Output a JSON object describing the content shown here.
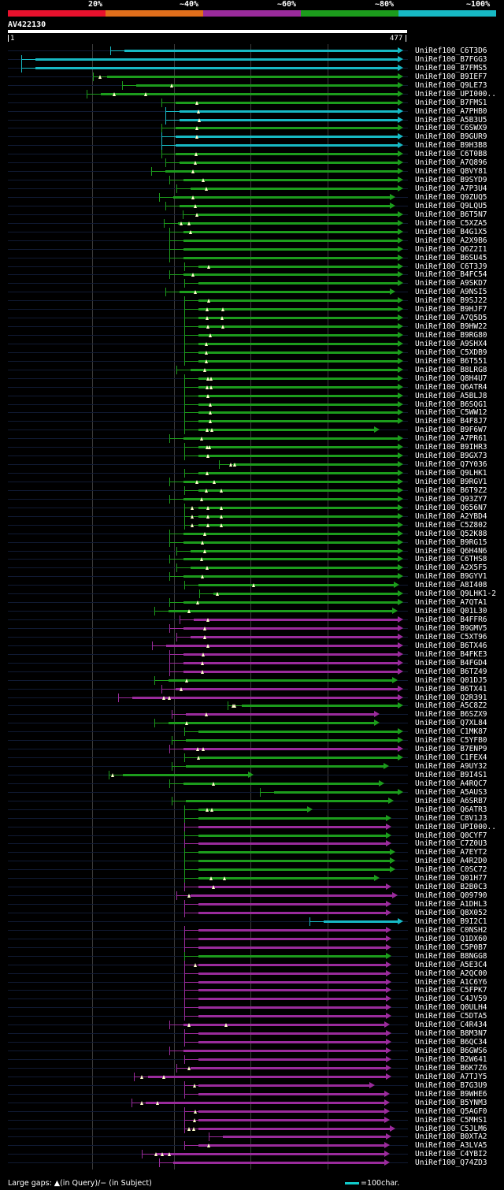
{
  "legend": {
    "labels": [
      "20%",
      "~40%",
      "~60%",
      "~80%",
      "~100%"
    ],
    "colors": [
      "#e8112d",
      "#e06e1b",
      "#9a2b9c",
      "#1c9c1c",
      "#17b9c4"
    ]
  },
  "query": {
    "name": "AV422130",
    "start": "1",
    "end": "477",
    "length": 477
  },
  "footer": {
    "gaps_legend": "Large gaps: ▲(in Query)/− (in Subject)",
    "scale_legend": "=100char."
  },
  "colors": {
    "green": "#1c9c1c",
    "magenta": "#9a2b9c",
    "cyan": "#17b9c4",
    "gap": "#ffffcc"
  },
  "hits": [
    {
      "name": "UniRef100_C6T3D6",
      "s": 140,
      "e": 512,
      "c": "cyan",
      "g": []
    },
    {
      "name": "UniRef100_B7FGG3",
      "s": 27,
      "e": 512,
      "c": "cyan",
      "g": []
    },
    {
      "name": "UniRef100_B7FMS5",
      "s": 27,
      "e": 512,
      "c": "cyan",
      "g": []
    },
    {
      "name": "UniRef100_B9IEF7",
      "s": 118,
      "e": 512,
      "c": "green",
      "g": [
        127
      ]
    },
    {
      "name": "UniRef100_Q9LE73",
      "s": 155,
      "e": 512,
      "c": "green",
      "g": [
        218
      ]
    },
    {
      "name": "UniRef100_UPI000..",
      "s": 110,
      "e": 512,
      "c": "green",
      "g": [
        145,
        185
      ]
    },
    {
      "name": "UniRef100_B7FMS1",
      "s": 205,
      "e": 512,
      "c": "green",
      "g": [
        250
      ]
    },
    {
      "name": "UniRef100_A7PHB0",
      "s": 210,
      "e": 512,
      "c": "cyan",
      "g": [
        252
      ]
    },
    {
      "name": "UniRef100_A5B3U5",
      "s": 210,
      "e": 512,
      "c": "cyan",
      "g": [
        253
      ]
    },
    {
      "name": "UniRef100_C6SWX9",
      "s": 205,
      "e": 512,
      "c": "green",
      "g": [
        250
      ]
    },
    {
      "name": "UniRef100_B9GUR9",
      "s": 205,
      "e": 512,
      "c": "cyan",
      "g": [
        250
      ]
    },
    {
      "name": "UniRef100_B9H3B8",
      "s": 205,
      "e": 512,
      "c": "cyan",
      "g": []
    },
    {
      "name": "UniRef100_C6T0B8",
      "s": 205,
      "e": 512,
      "c": "green",
      "g": [
        249
      ]
    },
    {
      "name": "UniRef100_A7Q896",
      "s": 210,
      "e": 512,
      "c": "green",
      "g": [
        248
      ]
    },
    {
      "name": "UniRef100_Q8VY81",
      "s": 192,
      "e": 512,
      "c": "green",
      "g": [
        245
      ]
    },
    {
      "name": "UniRef100_B9SYD9",
      "s": 215,
      "e": 512,
      "c": "green",
      "g": [
        258
      ]
    },
    {
      "name": "UniRef100_A7P3U4",
      "s": 224,
      "e": 512,
      "c": "green",
      "g": [
        262
      ]
    },
    {
      "name": "UniRef100_Q9ZUQ5",
      "s": 202,
      "e": 502,
      "c": "green",
      "g": [
        245
      ]
    },
    {
      "name": "UniRef100_Q9LQU5",
      "s": 210,
      "e": 502,
      "c": "green",
      "g": [
        248
      ]
    },
    {
      "name": "UniRef100_B6T5N7",
      "s": 232,
      "e": 512,
      "c": "green",
      "g": [
        250
      ]
    },
    {
      "name": "UniRef100_C5XZA5",
      "s": 208,
      "e": 512,
      "c": "green",
      "g": [
        230,
        240
      ]
    },
    {
      "name": "UniRef100_B4G1X5",
      "s": 215,
      "e": 512,
      "c": "green",
      "g": [
        242
      ]
    },
    {
      "name": "UniRef100_A2X9B6",
      "s": 215,
      "e": 512,
      "c": "green",
      "g": []
    },
    {
      "name": "UniRef100_Q6Z2I1",
      "s": 215,
      "e": 512,
      "c": "green",
      "g": []
    },
    {
      "name": "UniRef100_B6SU45",
      "s": 215,
      "e": 512,
      "c": "green",
      "g": []
    },
    {
      "name": "UniRef100_C6T3J9",
      "s": 234,
      "e": 512,
      "c": "green",
      "g": [
        265
      ]
    },
    {
      "name": "UniRef100_B4FC54",
      "s": 215,
      "e": 512,
      "c": "green",
      "g": [
        245
      ]
    },
    {
      "name": "UniRef100_A9SKD7",
      "s": 234,
      "e": 512,
      "c": "green",
      "g": []
    },
    {
      "name": "UniRef100_A9NSI5",
      "s": 210,
      "e": 502,
      "c": "green",
      "g": [
        248
      ]
    },
    {
      "name": "UniRef100_B9SJ22",
      "s": 234,
      "e": 512,
      "c": "green",
      "g": [
        265
      ]
    },
    {
      "name": "UniRef100_B9HJF7",
      "s": 234,
      "e": 512,
      "c": "green",
      "g": [
        263,
        283
      ]
    },
    {
      "name": "UniRef100_A7Q5D5",
      "s": 234,
      "e": 512,
      "c": "green",
      "g": [
        263,
        282
      ]
    },
    {
      "name": "UniRef100_B9HW22",
      "s": 234,
      "e": 512,
      "c": "green",
      "g": [
        264,
        283
      ]
    },
    {
      "name": "UniRef100_B9RG80",
      "s": 234,
      "e": 512,
      "c": "green",
      "g": [
        267
      ]
    },
    {
      "name": "UniRef100_A9SHX4",
      "s": 234,
      "e": 512,
      "c": "green",
      "g": [
        262
      ]
    },
    {
      "name": "UniRef100_C5XDB9",
      "s": 234,
      "e": 512,
      "c": "green",
      "g": [
        262
      ]
    },
    {
      "name": "UniRef100_B6T551",
      "s": 234,
      "e": 512,
      "c": "green",
      "g": [
        262
      ]
    },
    {
      "name": "UniRef100_B8LRG8",
      "s": 224,
      "e": 512,
      "c": "green",
      "g": [
        260
      ]
    },
    {
      "name": "UniRef100_Q8H4U7",
      "s": 234,
      "e": 512,
      "c": "green",
      "g": [
        264,
        268
      ]
    },
    {
      "name": "UniRef100_Q6ATR4",
      "s": 234,
      "e": 512,
      "c": "green",
      "g": [
        263,
        268
      ]
    },
    {
      "name": "UniRef100_A5BLJ8",
      "s": 234,
      "e": 512,
      "c": "green",
      "g": [
        264
      ]
    },
    {
      "name": "UniRef100_B6SQG1",
      "s": 234,
      "e": 512,
      "c": "green",
      "g": [
        267
      ]
    },
    {
      "name": "UniRef100_C5WW12",
      "s": 234,
      "e": 512,
      "c": "green",
      "g": [
        267
      ]
    },
    {
      "name": "UniRef100_B4F8J7",
      "s": 234,
      "e": 512,
      "c": "green",
      "g": [
        267
      ]
    },
    {
      "name": "UniRef100_B9F6W7",
      "s": 234,
      "e": 482,
      "c": "green",
      "g": [
        263,
        269
      ]
    },
    {
      "name": "UniRef100_A7PR61",
      "s": 215,
      "e": 512,
      "c": "green",
      "g": [
        256
      ]
    },
    {
      "name": "UniRef100_B9IHR3",
      "s": 234,
      "e": 512,
      "c": "green",
      "g": [
        263,
        266
      ]
    },
    {
      "name": "UniRef100_B9GX73",
      "s": 234,
      "e": 512,
      "c": "green",
      "g": [
        264
      ]
    },
    {
      "name": "UniRef100_Q7Y036",
      "s": 278,
      "e": 512,
      "c": "green",
      "g": [
        293,
        298
      ]
    },
    {
      "name": "UniRef100_Q9LHK1",
      "s": 234,
      "e": 512,
      "c": "green",
      "g": [
        263
      ]
    },
    {
      "name": "UniRef100_B9RGV1",
      "s": 215,
      "e": 512,
      "c": "green",
      "g": [
        250,
        272
      ]
    },
    {
      "name": "UniRef100_B6T9Z2",
      "s": 234,
      "e": 512,
      "c": "green",
      "g": [
        262,
        281
      ]
    },
    {
      "name": "UniRef100_Q93ZY7",
      "s": 215,
      "e": 512,
      "c": "green",
      "g": [
        256
      ]
    },
    {
      "name": "UniRef100_Q656N7",
      "s": 234,
      "e": 512,
      "c": "green",
      "g": [
        244,
        264,
        281
      ]
    },
    {
      "name": "UniRef100_A2YBD4",
      "s": 234,
      "e": 512,
      "c": "green",
      "g": [
        244,
        264,
        281
      ]
    },
    {
      "name": "UniRef100_C5Z802",
      "s": 234,
      "e": 512,
      "c": "green",
      "g": [
        244,
        264,
        281
      ]
    },
    {
      "name": "UniRef100_Q52K88",
      "s": 215,
      "e": 512,
      "c": "green",
      "g": [
        260
      ]
    },
    {
      "name": "UniRef100_B9RG15",
      "s": 215,
      "e": 512,
      "c": "green",
      "g": [
        257
      ]
    },
    {
      "name": "UniRef100_Q6H4N6",
      "s": 224,
      "e": 512,
      "c": "green",
      "g": [
        260
      ]
    },
    {
      "name": "UniRef100_C6THS8",
      "s": 215,
      "e": 512,
      "c": "green",
      "g": [
        256
      ]
    },
    {
      "name": "UniRef100_A2X5F5",
      "s": 224,
      "e": 512,
      "c": "green",
      "g": [
        263
      ]
    },
    {
      "name": "UniRef100_B9GYV1",
      "s": 215,
      "e": 512,
      "c": "green",
      "g": [
        257
      ]
    },
    {
      "name": "UniRef100_A8I408",
      "s": 234,
      "e": 507,
      "c": "green",
      "g": [
        322
      ]
    },
    {
      "name": "UniRef100_Q9LHK1-2",
      "s": 253,
      "e": 512,
      "c": "green",
      "g": [
        276
      ]
    },
    {
      "name": "UniRef100_A7QTA1",
      "s": 215,
      "e": 512,
      "c": "green",
      "g": [
        251
      ]
    },
    {
      "name": "UniRef100_Q01L30",
      "s": 196,
      "e": 505,
      "c": "green",
      "g": [
        240
      ]
    },
    {
      "name": "UniRef100_B4FFR6",
      "s": 228,
      "e": 512,
      "c": "magenta",
      "g": [
        264
      ]
    },
    {
      "name": "UniRef100_B9GMV5",
      "s": 215,
      "e": 512,
      "c": "magenta",
      "g": [
        260
      ]
    },
    {
      "name": "UniRef100_C5XT96",
      "s": 224,
      "e": 512,
      "c": "magenta",
      "g": [
        260
      ]
    },
    {
      "name": "UniRef100_B6TX46",
      "s": 193,
      "e": 512,
      "c": "magenta",
      "g": [
        264
      ]
    },
    {
      "name": "UniRef100_B4FKE3",
      "s": 215,
      "e": 512,
      "c": "magenta",
      "g": [
        258
      ]
    },
    {
      "name": "UniRef100_B4FGD4",
      "s": 215,
      "e": 512,
      "c": "magenta",
      "g": [
        257
      ]
    },
    {
      "name": "UniRef100_B6TZ49",
      "s": 215,
      "e": 512,
      "c": "magenta",
      "g": [
        257
      ]
    },
    {
      "name": "UniRef100_Q01DJ5",
      "s": 196,
      "e": 505,
      "c": "green",
      "g": [
        237
      ]
    },
    {
      "name": "UniRef100_B6TX41",
      "s": 205,
      "e": 512,
      "c": "magenta",
      "g": [
        230
      ]
    },
    {
      "name": "UniRef100_Q2R391",
      "s": 150,
      "e": 512,
      "c": "magenta",
      "g": [
        208,
        215
      ]
    },
    {
      "name": "UniRef100_A5C8Z2",
      "s": 289,
      "e": 512,
      "c": "green",
      "g": [
        296,
        298
      ]
    },
    {
      "name": "UniRef100_B6SZX9",
      "s": 218,
      "e": 482,
      "c": "magenta",
      "g": [
        262
      ]
    },
    {
      "name": "UniRef100_Q7XL84",
      "s": 196,
      "e": 482,
      "c": "green",
      "g": [
        237
      ]
    },
    {
      "name": "UniRef100_C1MK87",
      "s": 234,
      "e": 512,
      "c": "green",
      "g": []
    },
    {
      "name": "UniRef100_C5YFB0",
      "s": 218,
      "e": 512,
      "c": "green",
      "g": []
    },
    {
      "name": "UniRef100_B7ENP9",
      "s": 215,
      "e": 512,
      "c": "magenta",
      "g": [
        251,
        258
      ]
    },
    {
      "name": "UniRef100_C1FEX4",
      "s": 234,
      "e": 512,
      "c": "green",
      "g": [
        252
      ]
    },
    {
      "name": "UniRef100_A9UY32",
      "s": 218,
      "e": 494,
      "c": "green",
      "g": []
    },
    {
      "name": "UniRef100_B9I4S1",
      "s": 138,
      "e": 322,
      "c": "green",
      "g": [
        143
      ]
    },
    {
      "name": "UniRef100_A4RQC7",
      "s": 215,
      "e": 488,
      "c": "green",
      "g": [
        271
      ]
    },
    {
      "name": "UniRef100_A5AUS3",
      "s": 330,
      "e": 512,
      "c": "green",
      "g": []
    },
    {
      "name": "UniRef100_A6SRB7",
      "s": 218,
      "e": 500,
      "c": "green",
      "g": []
    },
    {
      "name": "UniRef100_Q6ATR3",
      "s": 234,
      "e": 397,
      "c": "green",
      "g": [
        263,
        269
      ]
    },
    {
      "name": "UniRef100_C8V1J3",
      "s": 234,
      "e": 497,
      "c": "green",
      "g": []
    },
    {
      "name": "UniRef100_UPI000..",
      "s": 234,
      "e": 497,
      "c": "magenta",
      "g": []
    },
    {
      "name": "UniRef100_Q0CYF7",
      "s": 234,
      "e": 497,
      "c": "green",
      "g": []
    },
    {
      "name": "UniRef100_C7Z0U3",
      "s": 234,
      "e": 497,
      "c": "magenta",
      "g": []
    },
    {
      "name": "UniRef100_A7EYT2",
      "s": 234,
      "e": 502,
      "c": "green",
      "g": []
    },
    {
      "name": "UniRef100_A4R2D0",
      "s": 234,
      "e": 502,
      "c": "green",
      "g": []
    },
    {
      "name": "UniRef100_C0SC72",
      "s": 234,
      "e": 502,
      "c": "green",
      "g": []
    },
    {
      "name": "UniRef100_Q01H77",
      "s": 234,
      "e": 482,
      "c": "green",
      "g": [
        268,
        285
      ]
    },
    {
      "name": "UniRef100_B2B0C3",
      "s": 234,
      "e": 497,
      "c": "magenta",
      "g": [
        271
      ]
    },
    {
      "name": "UniRef100_Q09790",
      "s": 224,
      "e": 505,
      "c": "magenta",
      "g": [
        240
      ]
    },
    {
      "name": "UniRef100_A1DHL3",
      "s": 234,
      "e": 497,
      "c": "magenta",
      "g": []
    },
    {
      "name": "UniRef100_Q8X052",
      "s": 234,
      "e": 497,
      "c": "magenta",
      "g": []
    },
    {
      "name": "UniRef100_B9I2C1",
      "s": 393,
      "e": 512,
      "c": "cyan",
      "g": []
    },
    {
      "name": "UniRef100_C0NSH2",
      "s": 234,
      "e": 497,
      "c": "magenta",
      "g": []
    },
    {
      "name": "UniRef100_Q1DX60",
      "s": 234,
      "e": 497,
      "c": "magenta",
      "g": []
    },
    {
      "name": "UniRef100_C5P0B7",
      "s": 234,
      "e": 497,
      "c": "magenta",
      "g": []
    },
    {
      "name": "UniRef100_B8NGG8",
      "s": 234,
      "e": 497,
      "c": "green",
      "g": []
    },
    {
      "name": "UniRef100_A5E3C4",
      "s": 234,
      "e": 497,
      "c": "magenta",
      "g": [
        248
      ]
    },
    {
      "name": "UniRef100_A2QC00",
      "s": 234,
      "e": 497,
      "c": "magenta",
      "g": []
    },
    {
      "name": "UniRef100_A1C6Y6",
      "s": 234,
      "e": 497,
      "c": "magenta",
      "g": []
    },
    {
      "name": "UniRef100_C5FPK7",
      "s": 234,
      "e": 497,
      "c": "magenta",
      "g": []
    },
    {
      "name": "UniRef100_C4JV59",
      "s": 234,
      "e": 497,
      "c": "magenta",
      "g": []
    },
    {
      "name": "UniRef100_Q0ULH4",
      "s": 234,
      "e": 497,
      "c": "magenta",
      "g": []
    },
    {
      "name": "UniRef100_C5DTA5",
      "s": 234,
      "e": 497,
      "c": "magenta",
      "g": []
    },
    {
      "name": "UniRef100_C4R434",
      "s": 215,
      "e": 495,
      "c": "magenta",
      "g": [
        240,
        287
      ]
    },
    {
      "name": "UniRef100_B8M3N7",
      "s": 234,
      "e": 497,
      "c": "magenta",
      "g": []
    },
    {
      "name": "UniRef100_B6QC34",
      "s": 234,
      "e": 497,
      "c": "magenta",
      "g": []
    },
    {
      "name": "UniRef100_B6GWS6",
      "s": 215,
      "e": 497,
      "c": "magenta",
      "g": []
    },
    {
      "name": "UniRef100_B2W641",
      "s": 234,
      "e": 497,
      "c": "magenta",
      "g": []
    },
    {
      "name": "UniRef100_B6K7Z6",
      "s": 224,
      "e": 497,
      "c": "magenta",
      "g": [
        240
      ]
    },
    {
      "name": "UniRef100_A7TJY5",
      "s": 170,
      "e": 497,
      "c": "magenta",
      "g": [
        180,
        208
      ]
    },
    {
      "name": "UniRef100_B7G3U9",
      "s": 234,
      "e": 476,
      "c": "magenta",
      "g": [
        247
      ]
    },
    {
      "name": "UniRef100_B9WHE6",
      "s": 234,
      "e": 495,
      "c": "magenta",
      "g": []
    },
    {
      "name": "UniRef100_B5YNM3",
      "s": 167,
      "e": 495,
      "c": "magenta",
      "g": [
        180,
        200
      ]
    },
    {
      "name": "UniRef100_Q5AGF0",
      "s": 234,
      "e": 495,
      "c": "magenta",
      "g": [
        248
      ]
    },
    {
      "name": "UniRef100_C5MHS1",
      "s": 234,
      "e": 495,
      "c": "magenta",
      "g": [
        247
      ]
    },
    {
      "name": "UniRef100_C5JLM6",
      "s": 234,
      "e": 502,
      "c": "magenta",
      "g": [
        240,
        246
      ]
    },
    {
      "name": "UniRef100_B0XTA2",
      "s": 265,
      "e": 497,
      "c": "magenta",
      "g": []
    },
    {
      "name": "UniRef100_A3LVA5",
      "s": 234,
      "e": 495,
      "c": "magenta",
      "g": [
        265
      ]
    },
    {
      "name": "UniRef100_C4YBI2",
      "s": 180,
      "e": 495,
      "c": "magenta",
      "g": [
        198,
        206,
        215
      ]
    },
    {
      "name": "UniRef100_Q74ZD3",
      "s": 202,
      "e": 495,
      "c": "magenta",
      "g": []
    }
  ]
}
